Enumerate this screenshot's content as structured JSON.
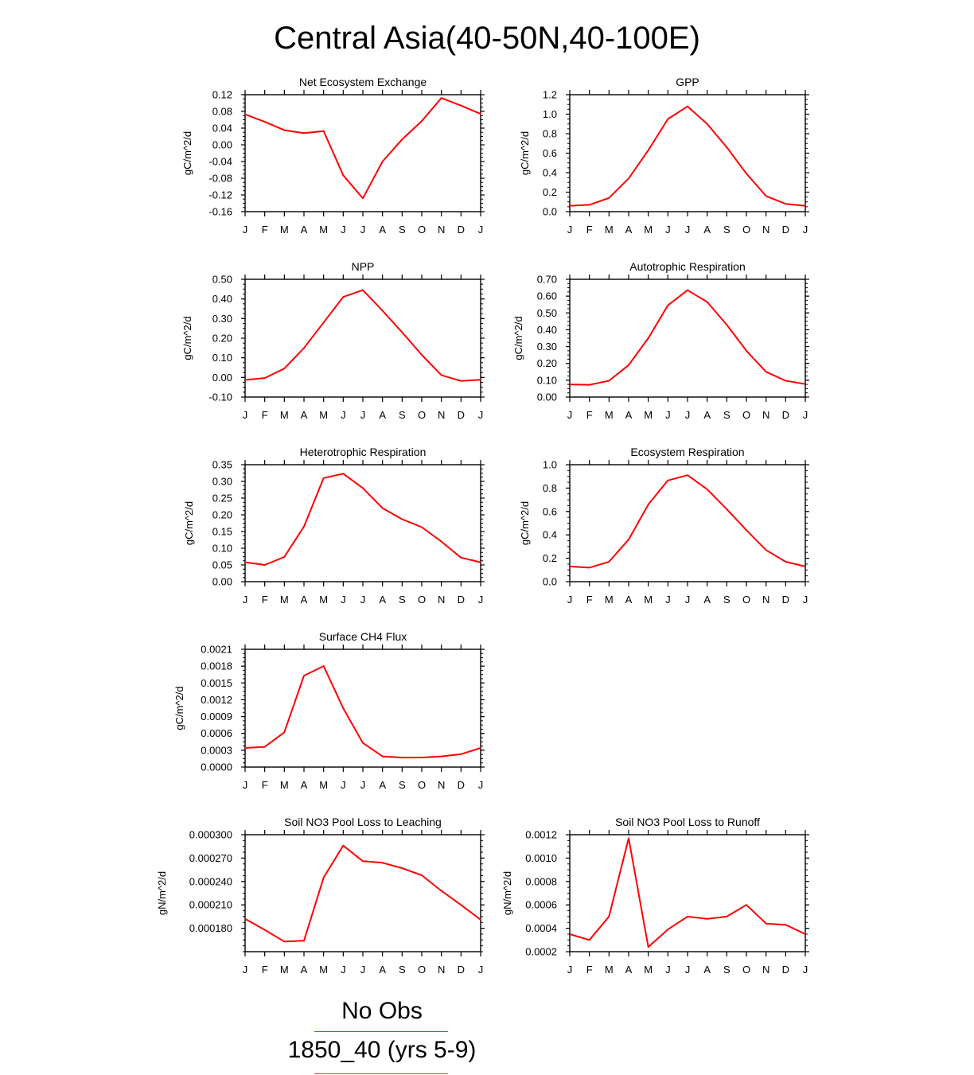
{
  "title": "Central Asia(40-50N,40-100E)",
  "legend": {
    "items": [
      {
        "label": "No Obs",
        "color": "#3b5bff"
      },
      {
        "label": "1850_40 (yrs 5-9)",
        "color": "#ff3030"
      }
    ]
  },
  "months": [
    "J",
    "F",
    "M",
    "A",
    "M",
    "J",
    "J",
    "A",
    "S",
    "O",
    "N",
    "D",
    "J"
  ],
  "series_color": "#ff0000",
  "chart_data": [
    {
      "type": "line",
      "title": "Net Ecosystem Exchange",
      "ylabel": "gC/m^2/d",
      "xlabel": "",
      "ylim": [
        -0.16,
        0.12
      ],
      "yticks": [
        -0.16,
        -0.12,
        -0.08,
        -0.04,
        0.0,
        0.04,
        0.08,
        0.12
      ],
      "ytick_labels": [
        "-0.16",
        "-0.12",
        "-0.08",
        "-0.04",
        "0.00",
        "0.04",
        "0.08",
        "0.12"
      ],
      "values": [
        0.073,
        0.055,
        0.035,
        0.028,
        0.033,
        -0.073,
        -0.128,
        -0.04,
        0.013,
        0.057,
        0.112,
        0.094,
        0.074
      ]
    },
    {
      "type": "line",
      "title": "GPP",
      "ylabel": "gC/m^2/d",
      "xlabel": "",
      "ylim": [
        0.0,
        1.2
      ],
      "yticks": [
        0.0,
        0.2,
        0.4,
        0.6,
        0.8,
        1.0,
        1.2
      ],
      "ytick_labels": [
        "0.0",
        "0.2",
        "0.4",
        "0.6",
        "0.8",
        "1.0",
        "1.2"
      ],
      "values": [
        0.06,
        0.07,
        0.14,
        0.34,
        0.63,
        0.95,
        1.08,
        0.9,
        0.66,
        0.39,
        0.16,
        0.08,
        0.06
      ]
    },
    {
      "type": "line",
      "title": "NPP",
      "ylabel": "gC/m^2/d",
      "xlabel": "",
      "ylim": [
        -0.1,
        0.5
      ],
      "yticks": [
        -0.1,
        0.0,
        0.1,
        0.2,
        0.3,
        0.4,
        0.5
      ],
      "ytick_labels": [
        "-0.10",
        "0.00",
        "0.10",
        "0.20",
        "0.30",
        "0.40",
        "0.50"
      ],
      "values": [
        -0.013,
        -0.003,
        0.045,
        0.15,
        0.28,
        0.41,
        0.445,
        0.34,
        0.23,
        0.115,
        0.012,
        -0.018,
        -0.012
      ]
    },
    {
      "type": "line",
      "title": "Autotrophic Respiration",
      "ylabel": "gC/m^2/d",
      "xlabel": "",
      "ylim": [
        0.0,
        0.7
      ],
      "yticks": [
        0.0,
        0.1,
        0.2,
        0.3,
        0.4,
        0.5,
        0.6,
        0.7
      ],
      "ytick_labels": [
        "0.00",
        "0.10",
        "0.20",
        "0.30",
        "0.40",
        "0.50",
        "0.60",
        "0.70"
      ],
      "values": [
        0.075,
        0.073,
        0.097,
        0.19,
        0.35,
        0.545,
        0.635,
        0.565,
        0.43,
        0.275,
        0.15,
        0.097,
        0.077
      ]
    },
    {
      "type": "line",
      "title": "Heterotrophic Respiration",
      "ylabel": "gC/m^2/d",
      "xlabel": "",
      "ylim": [
        0.0,
        0.35
      ],
      "yticks": [
        0.0,
        0.05,
        0.1,
        0.15,
        0.2,
        0.25,
        0.3,
        0.35
      ],
      "ytick_labels": [
        "0.00",
        "0.05",
        "0.10",
        "0.15",
        "0.20",
        "0.25",
        "0.30",
        "0.35"
      ],
      "values": [
        0.058,
        0.05,
        0.074,
        0.165,
        0.31,
        0.323,
        0.28,
        0.22,
        0.187,
        0.163,
        0.12,
        0.072,
        0.058
      ]
    },
    {
      "type": "line",
      "title": "Ecosystem Respiration",
      "ylabel": "gC/m^2/d",
      "xlabel": "",
      "ylim": [
        0.0,
        1.0
      ],
      "yticks": [
        0.0,
        0.2,
        0.4,
        0.6,
        0.8,
        1.0
      ],
      "ytick_labels": [
        "0.0",
        "0.2",
        "0.4",
        "0.6",
        "0.8",
        "1.0"
      ],
      "values": [
        0.13,
        0.12,
        0.17,
        0.36,
        0.66,
        0.865,
        0.91,
        0.79,
        0.62,
        0.44,
        0.27,
        0.17,
        0.13
      ]
    },
    {
      "type": "line",
      "title": "Surface CH4 Flux",
      "ylabel": "gC/m^2/d",
      "xlabel": "",
      "ylim": [
        0.0,
        0.0021
      ],
      "yticks": [
        0.0,
        0.0003,
        0.0006,
        0.0009,
        0.0012,
        0.0015,
        0.0018,
        0.0021
      ],
      "ytick_labels": [
        "0.0000",
        "0.0003",
        "0.0006",
        "0.0009",
        "0.0012",
        "0.0015",
        "0.0018",
        "0.0021"
      ],
      "values": [
        0.00034,
        0.00036,
        0.00062,
        0.00163,
        0.0018,
        0.00105,
        0.00043,
        0.00019,
        0.00017,
        0.00017,
        0.00019,
        0.00023,
        0.00034
      ]
    },
    {
      "type": "line",
      "title": "Soil NO3 Pool Loss to Leaching",
      "ylabel": "gN/m^2/d",
      "xlabel": "",
      "ylim": [
        0.00015,
        0.0003
      ],
      "yticks": [
        0.00018,
        0.00021,
        0.00024,
        0.00027,
        0.0003
      ],
      "ytick_labels": [
        "0.000180",
        "0.000210",
        "0.000240",
        "0.000270",
        "0.000300"
      ],
      "values": [
        0.000192,
        0.000178,
        0.000163,
        0.000164,
        0.000245,
        0.000286,
        0.000266,
        0.000264,
        0.000257,
        0.000248,
        0.000228,
        0.00021,
        0.000191
      ]
    },
    {
      "type": "line",
      "title": "Soil NO3 Pool Loss to Runoff",
      "ylabel": "gN/m^2/d",
      "xlabel": "",
      "ylim": [
        0.0002,
        0.0012
      ],
      "yticks": [
        0.0002,
        0.0004,
        0.0006,
        0.0008,
        0.001,
        0.0012
      ],
      "ytick_labels": [
        "0.0002",
        "0.0004",
        "0.0006",
        "0.0008",
        "0.0010",
        "0.0012"
      ],
      "values": [
        0.00035,
        0.0003,
        0.0005,
        0.00117,
        0.00024,
        0.00039,
        0.0005,
        0.00048,
        0.0005,
        0.0006,
        0.00044,
        0.00043,
        0.00035
      ]
    }
  ]
}
